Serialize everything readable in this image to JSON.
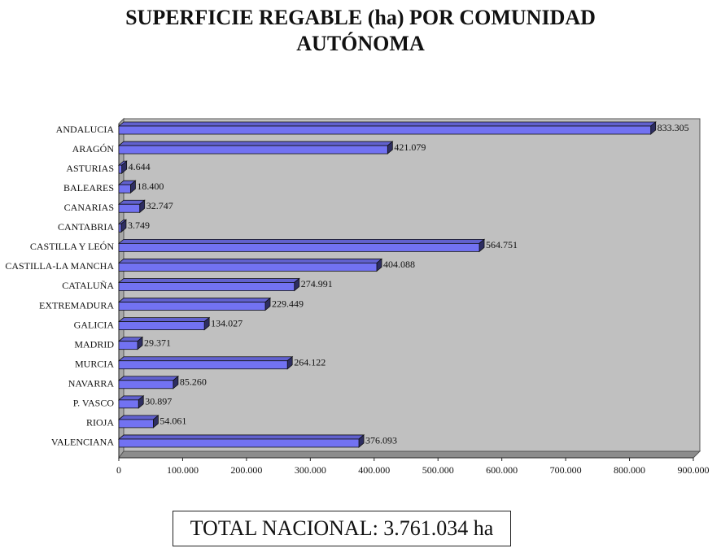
{
  "chart_data": {
    "type": "bar",
    "orientation": "horizontal",
    "title": "SUPERFICIE REGABLE (ha) POR COMUNIDAD AUTÓNOMA",
    "categories": [
      "ANDALUCIA",
      "ARAGÓN",
      "ASTURIAS",
      "BALEARES",
      "CANARIAS",
      "CANTABRIA",
      "CASTILLA Y LEÓN",
      "CASTILLA-LA MANCHA",
      "CATALUÑA",
      "EXTREMADURA",
      "GALICIA",
      "MADRID",
      "MURCIA",
      "NAVARRA",
      "P. VASCO",
      "RIOJA",
      "VALENCIANA"
    ],
    "values": [
      833305,
      421079,
      4644,
      18400,
      32747,
      3749,
      564751,
      404088,
      274991,
      229449,
      134027,
      29371,
      264122,
      85260,
      30897,
      54061,
      376093
    ],
    "value_labels": [
      "833.305",
      "421.079",
      "4.644",
      "18.400",
      "32.747",
      "3.749",
      "564.751",
      "404.088",
      "274.991",
      "229.449",
      "134.027",
      "29.371",
      "264.122",
      "85.260",
      "30.897",
      "54.061",
      "376.093"
    ],
    "color": "#7272f2",
    "xlim": [
      0,
      900000
    ],
    "xticks": [
      0,
      {
        "value": 100000,
        "label": "100.000"
      },
      {
        "value": 200000,
        "label": "200.000"
      },
      {
        "value": 300000,
        "label": "300.000"
      },
      {
        "value": 400000,
        "label": "400.000"
      },
      {
        "value": 500000,
        "label": "500.000"
      },
      {
        "value": 600000,
        "label": "600.000"
      },
      {
        "value": 700000,
        "label": "700.000"
      },
      {
        "value": 800000,
        "label": "800.000"
      },
      {
        "value": 900000,
        "label": "900.000"
      }
    ],
    "grid": false,
    "total_label": "TOTAL NACIONAL: 3.761.034 ha"
  }
}
